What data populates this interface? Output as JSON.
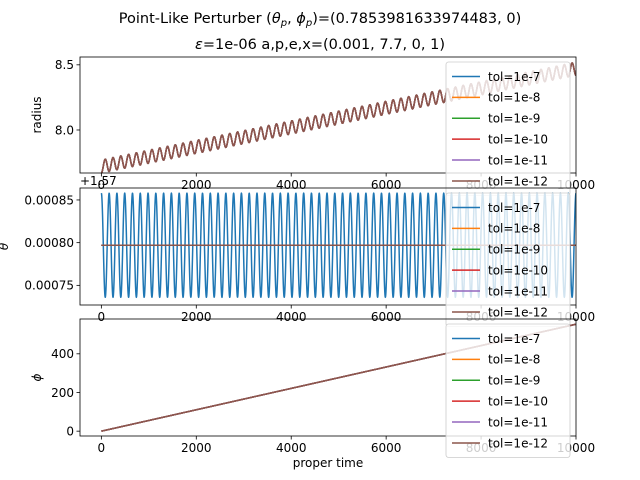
{
  "figure": {
    "title_line1_prefix": "Point-Like Perturber (",
    "title_line1_theta": "θ",
    "title_line1_theta_sub": "p",
    "title_line1_comma": ", ",
    "title_line1_phi": "ϕ",
    "title_line1_phi_sub": "p",
    "title_line1_suffix": ")=(0.7853981633974483, 0)",
    "title_line2_eps": "ε",
    "title_line2_rest": "=1e-06 a,p,e,x=(0.001, 7.7, 0, 1)",
    "xlabel": "proper time"
  },
  "legend_entries": [
    {
      "label": "tol=1e-7",
      "color": "#1f77b4"
    },
    {
      "label": "tol=1e-8",
      "color": "#ff7f0e"
    },
    {
      "label": "tol=1e-9",
      "color": "#2ca02c"
    },
    {
      "label": "tol=1e-10",
      "color": "#d62728"
    },
    {
      "label": "tol=1e-11",
      "color": "#9467bd"
    },
    {
      "label": "tol=1e-12",
      "color": "#8c564b"
    }
  ],
  "chart_data": [
    {
      "type": "line",
      "ylabel": "radius",
      "xlim": [
        -450,
        10000
      ],
      "ylim": [
        7.67,
        8.56
      ],
      "xticks": [
        0,
        2000,
        4000,
        6000,
        8000,
        10000
      ],
      "xtick_labels": [
        "0",
        "2000",
        "4000",
        "6000",
        "8000",
        "10000"
      ],
      "yticks": [
        8.0,
        8.5
      ],
      "ytick_labels": [
        "8.0",
        "8.5"
      ],
      "x_range": [
        0,
        10000
      ],
      "trend": {
        "start": 7.72,
        "end": 8.47
      },
      "oscillation": {
        "amplitude": 0.05,
        "cycles": 61
      },
      "series": [
        {
          "name": "tol=1e-7",
          "color": "#1f77b4"
        },
        {
          "name": "tol=1e-8",
          "color": "#ff7f0e"
        },
        {
          "name": "tol=1e-9",
          "color": "#2ca02c"
        },
        {
          "name": "tol=1e-10",
          "color": "#d62728"
        },
        {
          "name": "tol=1e-11",
          "color": "#9467bd"
        },
        {
          "name": "tol=1e-12",
          "color": "#8c564b"
        }
      ],
      "legend": "right"
    },
    {
      "type": "line",
      "ylabel": "θ",
      "offset_label": "+1.57",
      "xlim": [
        -450,
        10000
      ],
      "ylim": [
        0.000727,
        0.000864
      ],
      "xticks": [
        0,
        2000,
        4000,
        6000,
        8000,
        10000
      ],
      "xtick_labels": [
        "0",
        "2000",
        "4000",
        "6000",
        "8000",
        "10000"
      ],
      "yticks": [
        0.00075,
        0.0008,
        0.00085
      ],
      "ytick_labels": [
        "0.00075",
        "0.00080",
        "0.00085"
      ],
      "x_range": [
        0,
        10000
      ],
      "oscillating_series": {
        "name": "tol=1e-7",
        "center": 0.000797,
        "amplitude": 6.1e-05,
        "cycles": 61
      },
      "flat_value": 0.000797,
      "series": [
        {
          "name": "tol=1e-7",
          "color": "#1f77b4"
        },
        {
          "name": "tol=1e-8",
          "color": "#ff7f0e"
        },
        {
          "name": "tol=1e-9",
          "color": "#2ca02c"
        },
        {
          "name": "tol=1e-10",
          "color": "#d62728"
        },
        {
          "name": "tol=1e-11",
          "color": "#9467bd"
        },
        {
          "name": "tol=1e-12",
          "color": "#8c564b"
        }
      ],
      "legend": "right"
    },
    {
      "type": "line",
      "ylabel": "ϕ",
      "xlim": [
        -450,
        10000
      ],
      "ylim": [
        -25,
        580
      ],
      "xticks": [
        0,
        2000,
        4000,
        6000,
        8000,
        10000
      ],
      "xtick_labels": [
        "0",
        "2000",
        "4000",
        "6000",
        "8000",
        "10000"
      ],
      "yticks": [
        0,
        200,
        400
      ],
      "ytick_labels": [
        "0",
        "200",
        "400"
      ],
      "x_range": [
        0,
        10000
      ],
      "linear": {
        "start": 0,
        "end": 553
      },
      "series": [
        {
          "name": "tol=1e-7",
          "color": "#1f77b4"
        },
        {
          "name": "tol=1e-8",
          "color": "#ff7f0e"
        },
        {
          "name": "tol=1e-9",
          "color": "#2ca02c"
        },
        {
          "name": "tol=1e-10",
          "color": "#d62728"
        },
        {
          "name": "tol=1e-11",
          "color": "#9467bd"
        },
        {
          "name": "tol=1e-12",
          "color": "#8c564b"
        }
      ],
      "legend": "right"
    }
  ]
}
